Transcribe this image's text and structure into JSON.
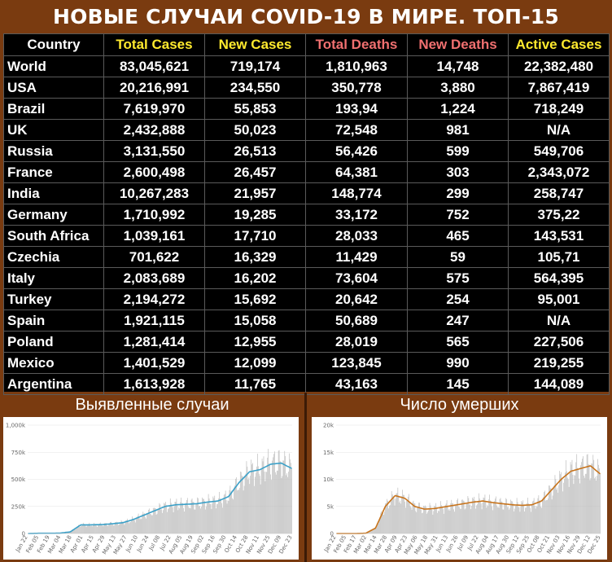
{
  "title": "НОВЫЕ СЛУЧАИ COVID-19 В МИРЕ. ТОП-15",
  "table": {
    "headers": [
      "Country",
      "Total Cases",
      "New Cases",
      "Total Deaths",
      "New Deaths",
      "Active Cases"
    ],
    "rows": [
      [
        "World",
        "83,045,621",
        "719,174",
        "1,810,963",
        "14,748",
        "22,382,480"
      ],
      [
        "USA",
        "20,216,991",
        "234,550",
        "350,778",
        "3,880",
        "7,867,419"
      ],
      [
        "Brazil",
        "7,619,970",
        "55,853",
        "193,94",
        "1,224",
        "718,249"
      ],
      [
        "UK",
        "2,432,888",
        "50,023",
        "72,548",
        "981",
        "N/A"
      ],
      [
        "Russia",
        "3,131,550",
        "26,513",
        "56,426",
        "599",
        "549,706"
      ],
      [
        "France",
        "2,600,498",
        "26,457",
        "64,381",
        "303",
        "2,343,072"
      ],
      [
        "India",
        "10,267,283",
        "21,957",
        "148,774",
        "299",
        "258,747"
      ],
      [
        "Germany",
        "1,710,992",
        "19,285",
        "33,172",
        "752",
        "375,22"
      ],
      [
        "South Africa",
        "1,039,161",
        "17,710",
        "28,033",
        "465",
        "143,531"
      ],
      [
        "Czechia",
        "701,622",
        "16,329",
        "11,429",
        "59",
        "105,71"
      ],
      [
        "Italy",
        "2,083,689",
        "16,202",
        "73,604",
        "575",
        "564,395"
      ],
      [
        "Turkey",
        "2,194,272",
        "15,692",
        "20,642",
        "254",
        "95,001"
      ],
      [
        "Spain",
        "1,921,115",
        "15,058",
        "50,689",
        "247",
        "N/A"
      ],
      [
        "Poland",
        "1,281,414",
        "12,955",
        "28,019",
        "565",
        "227,506"
      ],
      [
        "Mexico",
        "1,401,529",
        "12,099",
        "123,845",
        "990",
        "219,255"
      ],
      [
        "Argentina",
        "1,613,928",
        "11,765",
        "43,163",
        "145",
        "144,089"
      ]
    ]
  },
  "charts_labels": {
    "left": "Выявленные случаи",
    "right": "Число умерших"
  },
  "colors": {
    "background": "#7a3b10",
    "table_bg": "#000000",
    "header_yellow": "#ffea2e",
    "header_red": "#f07070",
    "cases_line": "#3aa0c8",
    "deaths_line": "#c8741c",
    "bars": "#bbbbbb"
  },
  "chart_data": [
    {
      "type": "bar",
      "title": "Выявленные случаи",
      "ylim": [
        0,
        1000000
      ],
      "yticks": [
        "0",
        "250k",
        "500k",
        "750k",
        "1,000k"
      ],
      "xticks": [
        "Jan 22",
        "Feb 05",
        "Feb 19",
        "Mar 04",
        "Mar 18",
        "Apr 01",
        "Apr 15",
        "Apr 29",
        "May 13",
        "May 27",
        "Jun 10",
        "Jun 24",
        "Jul 08",
        "Jul 22",
        "Aug 05",
        "Aug 19",
        "Sep 02",
        "Sep 16",
        "Sep 30",
        "Oct 14",
        "Oct 28",
        "Nov 11",
        "Nov 25",
        "Dec 09",
        "Dec 23"
      ],
      "series": [
        {
          "values": [
            0,
            2000,
            2000,
            3000,
            15000,
            80000,
            80000,
            82000,
            90000,
            100000,
            130000,
            170000,
            210000,
            250000,
            265000,
            270000,
            275000,
            290000,
            300000,
            340000,
            470000,
            570000,
            590000,
            640000,
            650000,
            600000
          ]
        }
      ]
    },
    {
      "type": "bar",
      "title": "Число умерших",
      "ylim": [
        0,
        20000
      ],
      "yticks": [
        "0",
        "5k",
        "10k",
        "15k",
        "20k"
      ],
      "xticks": [
        "Jan 22",
        "Feb 05",
        "Feb 17",
        "Mar 02",
        "Mar 14",
        "Mar 28",
        "Apr 09",
        "Apr 23",
        "May 06",
        "May 18",
        "May 31",
        "Jun 13",
        "Jun 26",
        "Jul 09",
        "Jul 22",
        "Aug 04",
        "Aug 17",
        "Aug 30",
        "Sep 12",
        "Sep 25",
        "Oct 08",
        "Oct 21",
        "Nov 03",
        "Nov 16",
        "Nov 29",
        "Dec 12",
        "Dec 25"
      ],
      "series": [
        {
          "values": [
            0,
            0,
            0,
            50,
            1000,
            5000,
            7000,
            6500,
            5000,
            4500,
            4600,
            4900,
            5200,
            5500,
            5800,
            6000,
            5700,
            5500,
            5300,
            5200,
            5300,
            6000,
            8000,
            10000,
            11500,
            12000,
            12500,
            11000
          ]
        }
      ]
    }
  ]
}
